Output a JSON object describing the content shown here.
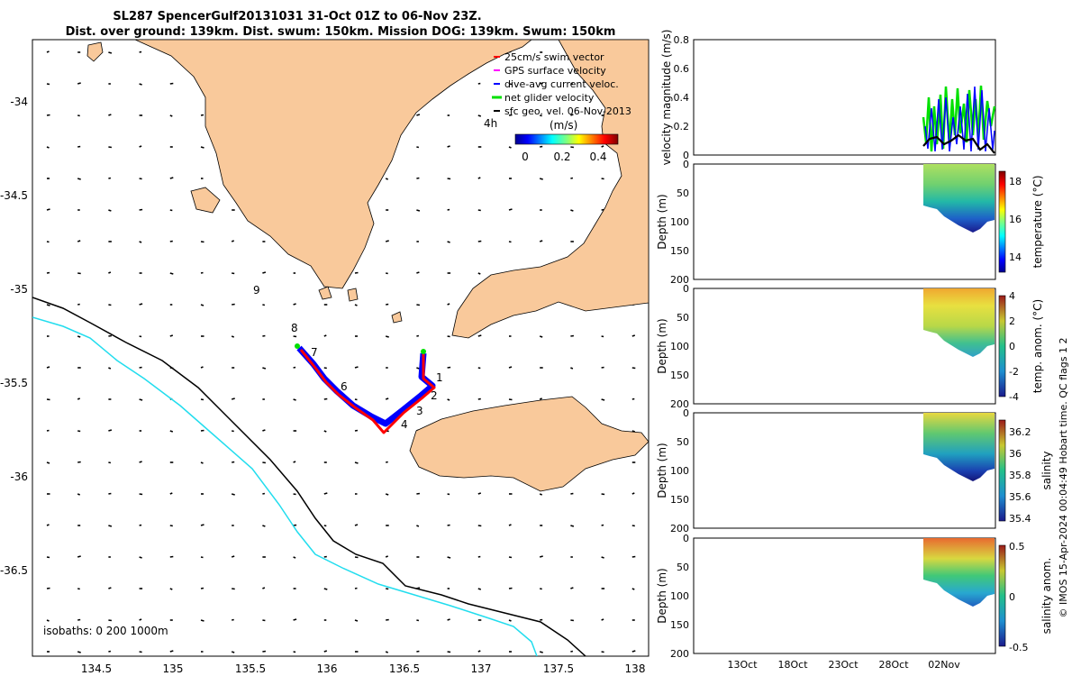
{
  "title_line1": "SL287 SpencerGulf20131031 31-Oct 01Z to 06-Nov 23Z.",
  "title_line2": "Dist. over ground: 139km. Dist. swum: 150km. Mission DOG: 139km. Swum: 150km",
  "footer_vertical": "© IMOS 15-Apr-2024 00:04:49 Hobart time. QC flags 1  2",
  "map": {
    "lon_ticks": [
      "134.5",
      "135",
      "135.5",
      "136",
      "136.5",
      "137",
      "137.5",
      "138"
    ],
    "lat_ticks": [
      "-34",
      "-34.5",
      "-35",
      "-35.5",
      "-36",
      "-36.5"
    ],
    "legend": [
      {
        "label": "25cm/s swim vector",
        "color": "#ff0000"
      },
      {
        "label": "GPS surface velocity",
        "color": "#ff00ff"
      },
      {
        "label": "dive-avg current veloc.",
        "color": "#0000ff"
      },
      {
        "label": "net glider velocity",
        "color": "#00e000"
      },
      {
        "label": "sfc geo. vel. 06-Nov-2013",
        "color": "#000000"
      }
    ],
    "colorbar_label": "(m/s)",
    "colorbar_prefix": "4h",
    "colorbar_ticks": [
      "0",
      "0.2",
      "0.4"
    ],
    "isobaths_label": "isobaths: 0  200  1000m",
    "track_day_labels": [
      "1",
      "2",
      "3",
      "4",
      "6",
      "7",
      "8",
      "9"
    ],
    "land_color": "#f9c99b"
  },
  "panels": {
    "velocity": {
      "ylabel": "velocity magnitude (m/s)",
      "yticks": [
        "0",
        "0.2",
        "0.4",
        "0.6",
        "0.8"
      ]
    },
    "depth_ticks": [
      "0",
      "50",
      "100",
      "150",
      "200"
    ],
    "depth_label": "Depth (m)",
    "temperature": {
      "cbar_label": "temperature (°C)",
      "cbar_ticks": [
        "18",
        "16",
        "14"
      ]
    },
    "temp_anom": {
      "cbar_label": "temp. anom. (°C)",
      "cbar_ticks": [
        "4",
        "2",
        "0",
        "-2",
        "-4"
      ]
    },
    "salinity": {
      "cbar_label": "salinity",
      "cbar_ticks": [
        "36.2",
        "36",
        "35.8",
        "35.6",
        "35.4"
      ]
    },
    "sal_anom": {
      "cbar_label": "salinity anom.",
      "cbar_ticks": [
        "0.5",
        "0",
        "-0.5"
      ]
    },
    "date_ticks": [
      "13Oct",
      "18Oct",
      "23Oct",
      "28Oct",
      "02Nov"
    ]
  },
  "chart_data": [
    {
      "type": "scatter",
      "x_label": "",
      "y_label": "",
      "xlim": [
        134.1,
        138.1
      ],
      "ylim": [
        -36.93,
        -33.67
      ],
      "series": [
        {
          "name": "glider track",
          "points": [
            [
              136.65,
              -35.33
            ],
            [
              136.64,
              -35.45
            ],
            [
              136.7,
              -35.5
            ],
            [
              136.64,
              -35.58
            ],
            [
              136.5,
              -35.66
            ],
            [
              136.4,
              -35.74
            ],
            [
              136.32,
              -35.7
            ],
            [
              136.2,
              -35.62
            ],
            [
              136.08,
              -35.54
            ],
            [
              136.0,
              -35.48
            ],
            [
              135.92,
              -35.4
            ],
            [
              135.84,
              -35.33
            ]
          ]
        }
      ],
      "annotations": [
        "1",
        "2",
        "3",
        "4",
        "6",
        "7",
        "8",
        "9"
      ]
    },
    {
      "type": "line",
      "x_label": "",
      "y_label": "velocity magnitude (m/s)",
      "ylim": [
        0,
        0.8
      ],
      "categories": [
        "13Oct",
        "18Oct",
        "23Oct",
        "28Oct",
        "02Nov"
      ],
      "series": [
        {
          "name": "net glider velocity",
          "values_approx_range": [
            0.02,
            0.52
          ]
        },
        {
          "name": "dive-avg current veloc.",
          "values_approx_range": [
            0.0,
            0.45
          ]
        },
        {
          "name": "sfc geo. vel. 06-Nov-2013",
          "values_approx_range": [
            0.03,
            0.13
          ]
        }
      ]
    },
    {
      "type": "heatmap",
      "y_label": "Depth (m)",
      "ylim": [
        200,
        0
      ],
      "value_label": "temperature (°C)",
      "value_range": [
        13.2,
        18.8
      ]
    },
    {
      "type": "heatmap",
      "y_label": "Depth (m)",
      "ylim": [
        200,
        0
      ],
      "value_label": "temp. anom. (°C)",
      "value_range": [
        -4,
        4
      ]
    },
    {
      "type": "heatmap",
      "y_label": "Depth (m)",
      "ylim": [
        200,
        0
      ],
      "value_label": "salinity",
      "value_range": [
        35.3,
        36.3
      ]
    },
    {
      "type": "heatmap",
      "y_label": "Depth (m)",
      "ylim": [
        200,
        0
      ],
      "value_label": "salinity anom.",
      "value_range": [
        -0.5,
        0.5
      ]
    }
  ]
}
